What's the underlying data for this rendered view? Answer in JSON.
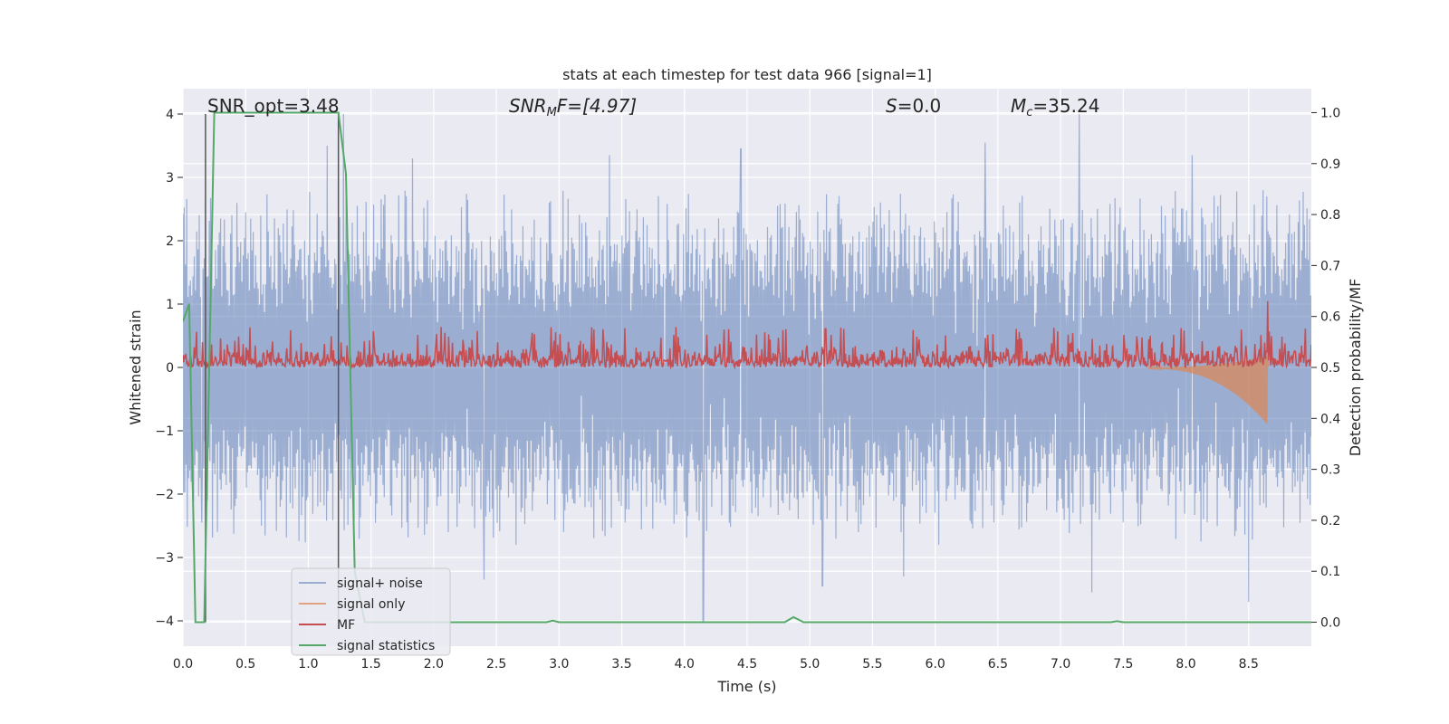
{
  "chart_data": {
    "type": "line",
    "title": "stats at each timestep for test data 966 [signal=1]",
    "xlabel": "Time (s)",
    "ylabel": "Whitened strain",
    "y2label": "Detection probability/MF",
    "xlim": [
      0,
      9
    ],
    "ylim": [
      -4.4,
      4.4
    ],
    "y2lim": [
      -0.047,
      1.047
    ],
    "grid": true,
    "legend_position": "lower-left",
    "x_ticks": [
      0.0,
      0.5,
      1.0,
      1.5,
      2.0,
      2.5,
      3.0,
      3.5,
      4.0,
      4.5,
      5.0,
      5.5,
      6.0,
      6.5,
      7.0,
      7.5,
      8.0,
      8.5
    ],
    "x_tick_labels": [
      "0.0",
      "0.5",
      "1.0",
      "1.5",
      "2.0",
      "2.5",
      "3.0",
      "3.5",
      "4.0",
      "4.5",
      "5.0",
      "5.5",
      "6.0",
      "6.5",
      "7.0",
      "7.5",
      "8.0",
      "8.5"
    ],
    "y_ticks": [
      -4,
      -3,
      -2,
      -1,
      0,
      1,
      2,
      3,
      4
    ],
    "y_tick_labels": [
      "−4",
      "−3",
      "−2",
      "−1",
      "0",
      "1",
      "2",
      "3",
      "4"
    ],
    "y2_ticks": [
      0.0,
      0.1,
      0.2,
      0.3,
      0.4,
      0.5,
      0.6,
      0.7,
      0.8,
      0.9,
      1.0
    ],
    "y2_tick_labels": [
      "0.0",
      "0.1",
      "0.2",
      "0.3",
      "0.4",
      "0.5",
      "0.6",
      "0.7",
      "0.8",
      "0.9",
      "1.0"
    ],
    "annotations": {
      "snr_opt": "SNR_opt=3.48",
      "snr_mf_symbol": "SNR",
      "snr_mf_sub": "M",
      "snr_mf_rest": "F=[4.97]",
      "s_symbol": "S",
      "s_rest": "=0.0",
      "mc_symbol": "M",
      "mc_sub": "c",
      "mc_rest": "=35.24"
    },
    "vertical_markers_s": [
      0.18,
      1.24
    ],
    "series": [
      {
        "name": "signal+ noise",
        "color": "#4c72b0",
        "axis": "left",
        "description_values": {
          "envelope_upper_typical": 2.4,
          "envelope_lower_typical": -2.4,
          "peaks": [
            [
              0.15,
              -2.45
            ],
            [
              0.5,
              2.45
            ],
            [
              1.15,
              3.5
            ],
            [
              1.28,
              4.0
            ],
            [
              1.83,
              3.3
            ],
            [
              2.4,
              -3.35
            ],
            [
              3.4,
              3.35
            ],
            [
              4.15,
              -4.0
            ],
            [
              4.45,
              3.45
            ],
            [
              5.1,
              -3.45
            ],
            [
              5.75,
              -3.3
            ],
            [
              6.4,
              3.55
            ],
            [
              7.15,
              4.0
            ],
            [
              7.25,
              -3.55
            ],
            [
              8.05,
              3.35
            ],
            [
              8.5,
              -3.7
            ]
          ]
        }
      },
      {
        "name": "signal only",
        "color": "#dd8452",
        "axis": "left",
        "description_values": {
          "chirp_start_s": 7.7,
          "chirp_end_s": 8.65,
          "min_value": -0.9,
          "max_value": 0.6
        }
      },
      {
        "name": "MF",
        "color": "#c44e52",
        "axis": "right",
        "description_values": {
          "baseline": 0.5,
          "typical_max": 0.55,
          "typical_peak": 0.58,
          "final_peak": [
            8.65,
            0.63
          ]
        }
      },
      {
        "name": "signal statistics",
        "color": "#55a868",
        "axis": "right",
        "points": [
          [
            0.0,
            0.59
          ],
          [
            0.05,
            0.625
          ],
          [
            0.1,
            0.0
          ],
          [
            0.17,
            0.0
          ],
          [
            0.25,
            1.0
          ],
          [
            1.24,
            1.0
          ],
          [
            1.3,
            0.88
          ],
          [
            1.37,
            0.1
          ],
          [
            1.45,
            0.0
          ],
          [
            2.9,
            0.0
          ],
          [
            2.95,
            0.003
          ],
          [
            3.0,
            0.0
          ],
          [
            4.8,
            0.0
          ],
          [
            4.87,
            0.01
          ],
          [
            4.95,
            0.0
          ],
          [
            7.4,
            0.0
          ],
          [
            7.45,
            0.002
          ],
          [
            7.5,
            0.0
          ],
          [
            9.0,
            0.0
          ]
        ]
      }
    ]
  }
}
